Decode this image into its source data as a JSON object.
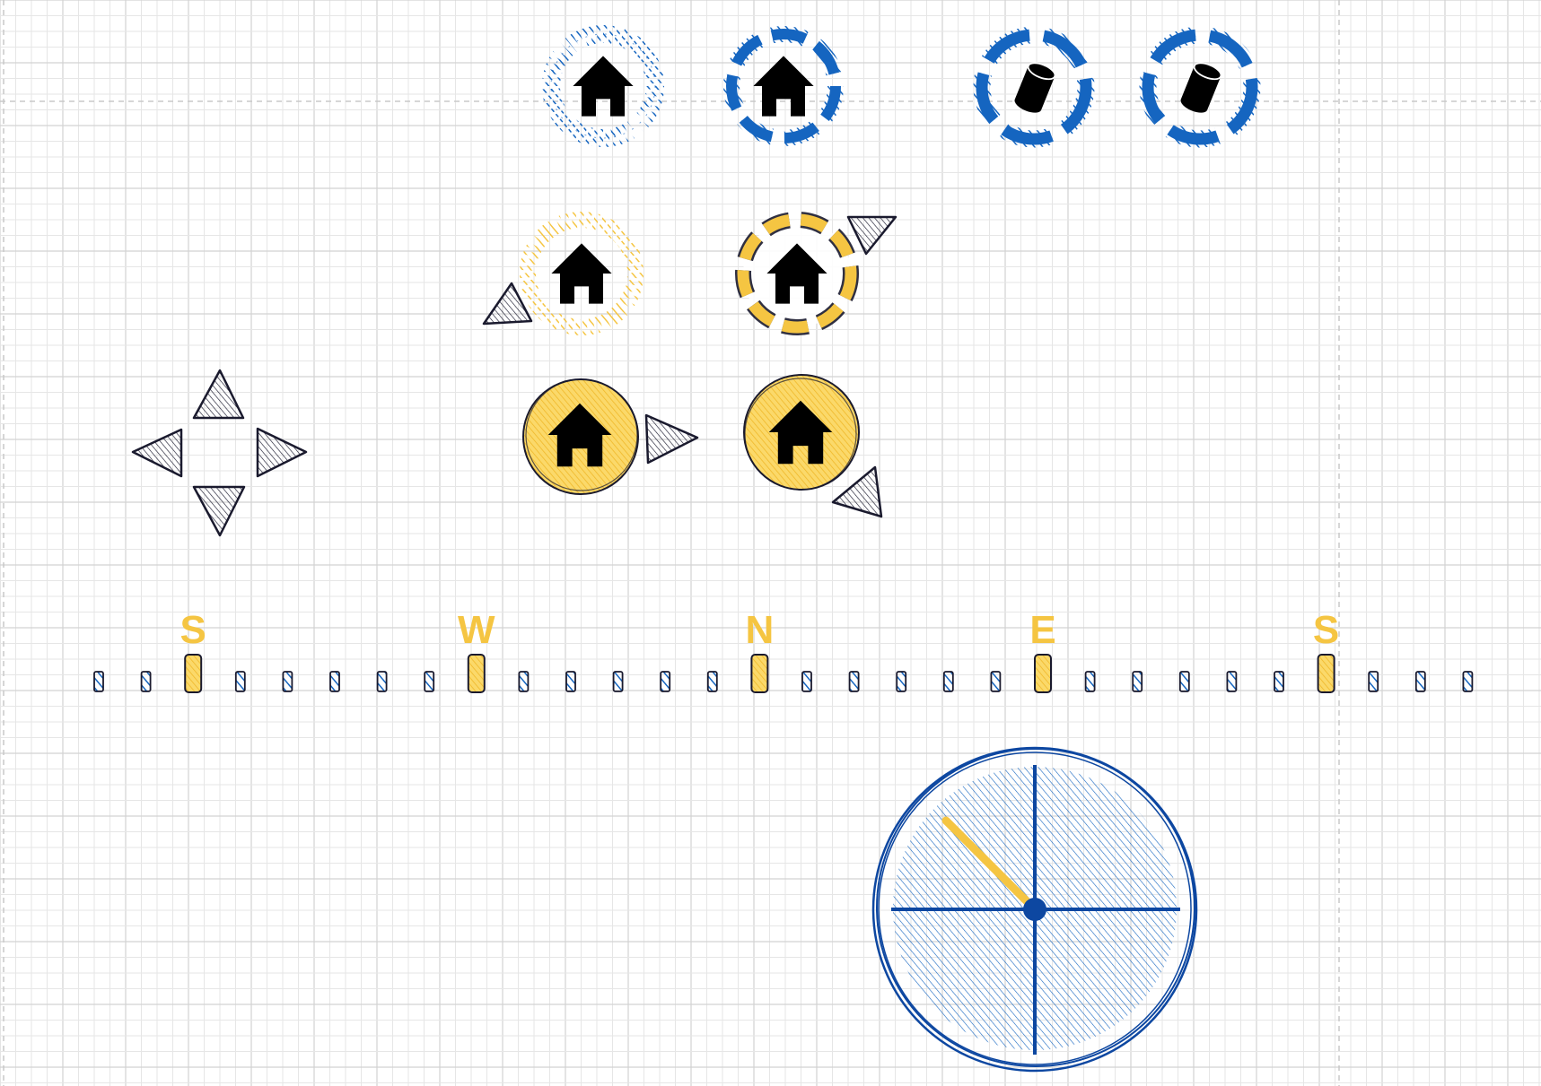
{
  "colors": {
    "background": "#ffffff",
    "grid_minor": "#e6e6e6",
    "grid_major": "#d2d2d2",
    "guide_dashed": "#c8c8c8",
    "blue": "#1565c0",
    "blue_dark": "#0d47a1",
    "yellow": "#f5c542",
    "yellow_stroke": "#f5c542",
    "dark": "#1a1a2e",
    "black": "#000000"
  },
  "icons": {
    "home": "home-icon",
    "cylinder": "cylinder-icon",
    "arrow": "triangle-arrow-icon"
  },
  "heading_strip": {
    "directions": [
      "S",
      "W",
      "N",
      "E",
      "S"
    ],
    "tick_count": 30
  },
  "dial": {
    "needle_heading_degrees": 315
  }
}
